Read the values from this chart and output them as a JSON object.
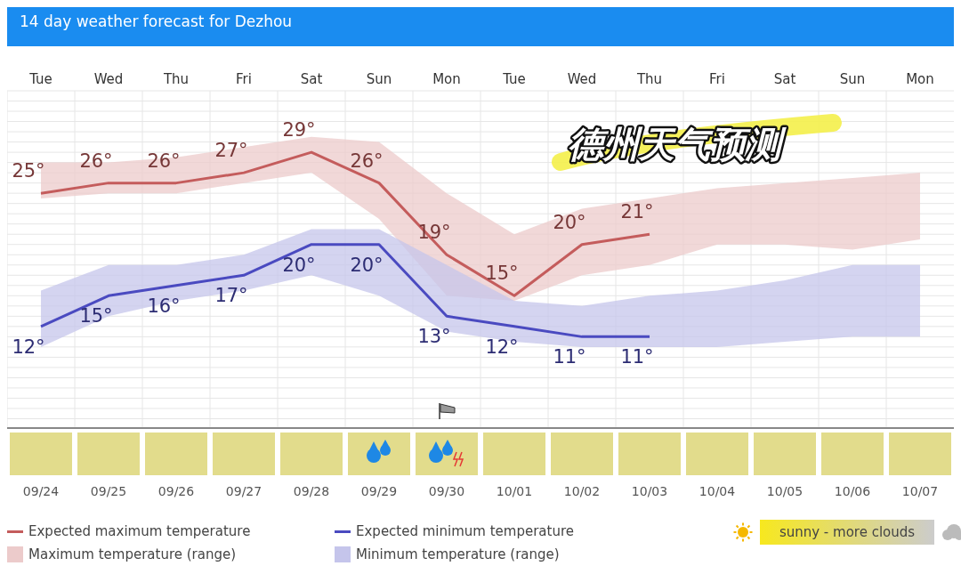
{
  "chart_data": {
    "type": "line",
    "title": "14 day weather forecast for Dezhou",
    "categories": [
      "Tue",
      "Wed",
      "Thu",
      "Fri",
      "Sat",
      "Sun",
      "Mon",
      "Tue",
      "Wed",
      "Thu",
      "Fri",
      "Sat",
      "Sun",
      "Mon"
    ],
    "series": [
      {
        "name": "Expected maximum temperature",
        "color": "#c45c5c",
        "values": [
          25,
          26,
          26,
          27,
          29,
          26,
          19,
          15,
          20,
          21,
          null,
          null,
          null,
          null
        ],
        "value_labels": [
          "25°",
          "26°",
          "26°",
          "27°",
          "29°",
          "26°",
          "19°",
          "15°",
          "20°",
          "21°",
          null,
          null,
          null,
          null
        ],
        "lower": [
          24.5,
          25,
          25,
          26,
          27,
          22.5,
          15,
          14.5,
          17,
          18,
          20,
          20,
          19.5,
          20.5
        ],
        "upper": [
          28,
          28,
          28.5,
          29.5,
          30.5,
          30,
          25,
          21,
          23.5,
          24.5,
          25.5,
          26,
          26.5,
          27
        ]
      },
      {
        "name": "Expected minimum temperature",
        "color": "#4a4ac0",
        "values": [
          12,
          15,
          16,
          17,
          20,
          20,
          13,
          12,
          11,
          11,
          null,
          null,
          null,
          null
        ],
        "value_labels": [
          "12°",
          "15°",
          "16°",
          "17°",
          "20°",
          "20°",
          "13°",
          "12°",
          "11°",
          "11°",
          null,
          null,
          null,
          null
        ],
        "lower": [
          10,
          13,
          14.5,
          15.5,
          17,
          15,
          11.5,
          10.5,
          10,
          10,
          10,
          10.5,
          11,
          11
        ],
        "upper": [
          15.5,
          18,
          18,
          19,
          21.5,
          21.5,
          18,
          14.5,
          14,
          15,
          15.5,
          16.5,
          18,
          18
        ]
      }
    ],
    "ylim": [
      2,
      35
    ],
    "yticks": [
      3,
      4,
      5,
      6,
      7,
      8,
      9,
      10,
      11,
      12,
      13,
      14,
      15,
      16,
      17,
      18,
      19,
      20,
      21,
      22,
      23,
      24,
      25,
      26,
      27,
      28,
      29,
      30,
      31,
      32,
      33,
      34,
      35
    ],
    "tick_labels": "x",
    "grid": true,
    "legend": "bottom",
    "marker": "none",
    "line_style": "solid",
    "annotations": [
      "德州天气预测",
      "09/24",
      "09/25",
      "09/26",
      "09/27",
      "09/28",
      "09/29",
      "09/30",
      "10/01",
      "10/02",
      "10/03",
      "10/04",
      "10/05",
      "10/06",
      "10/07",
      "sunny - more clouds",
      "Maximum temperature (range)",
      "Minimum temperature (range)"
    ]
  }
}
